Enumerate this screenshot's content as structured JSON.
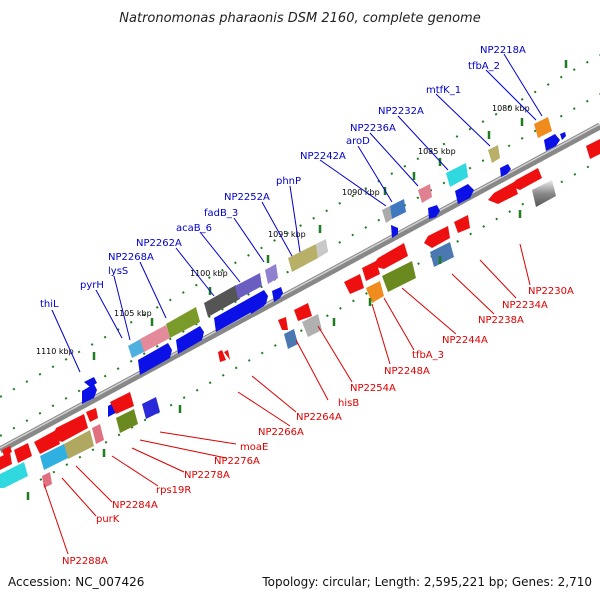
{
  "title": "Natronomonas pharaonis DSM 2160, complete genome",
  "footer": {
    "accession": "Accession: NC_007426",
    "summary": "Topology: circular; Length: 2,595,221 bp; Genes: 2,710"
  },
  "kbp_ticks": [
    "1110 kbp",
    "1105 kbp",
    "1100 kbp",
    "1095 kbp",
    "1090 kbp",
    "1085 kbp",
    "1080 kbp"
  ],
  "forward_labels": [
    "thiL",
    "pyrH",
    "lysS",
    "NP2268A",
    "NP2262A",
    "acaB_6",
    "fadB_3",
    "NP2252A",
    "phnP",
    "NP2242A",
    "aroD",
    "NP2236A",
    "NP2232A",
    "mtfK_1",
    "tfbA_2",
    "NP2218A"
  ],
  "reverse_labels": [
    "NP2230A",
    "NP2234A",
    "NP2238A",
    "NP2244A",
    "tfbA_3",
    "NP2248A",
    "NP2254A",
    "hisB",
    "NP2264A",
    "NP2266A",
    "moaE",
    "NP2276A",
    "NP2278A",
    "rps19R",
    "NP2284A",
    "purK",
    "NP2288A"
  ],
  "colors": {
    "forward": "#0000cc",
    "reverse": "#dd0000",
    "backbone": "#777777",
    "tick": "#1e7d1e"
  }
}
